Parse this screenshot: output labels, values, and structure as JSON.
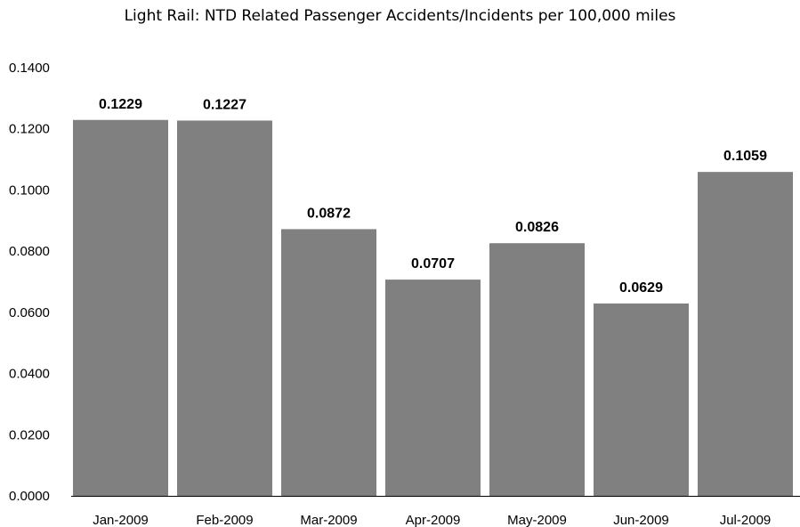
{
  "chart_data": {
    "type": "bar",
    "title": "Light Rail: NTD Related Passenger Accidents/Incidents per 100,000 miles",
    "xlabel": "",
    "ylabel": "",
    "categories": [
      "Jan-2009",
      "Feb-2009",
      "Mar-2009",
      "Apr-2009",
      "May-2009",
      "Jun-2009",
      "Jul-2009"
    ],
    "values": [
      0.1229,
      0.1227,
      0.0872,
      0.0707,
      0.0826,
      0.0629,
      0.1059
    ],
    "value_labels": [
      "0.1229",
      "0.1227",
      "0.0872",
      "0.0707",
      "0.0826",
      "0.0629",
      "0.1059"
    ],
    "ylim": [
      0,
      0.14
    ],
    "yticks": [
      "0.0000",
      "0.0200",
      "0.0400",
      "0.0600",
      "0.0800",
      "0.1000",
      "0.1200",
      "0.1400"
    ],
    "grid": false,
    "legend": "none",
    "bar_color": "#808080"
  }
}
